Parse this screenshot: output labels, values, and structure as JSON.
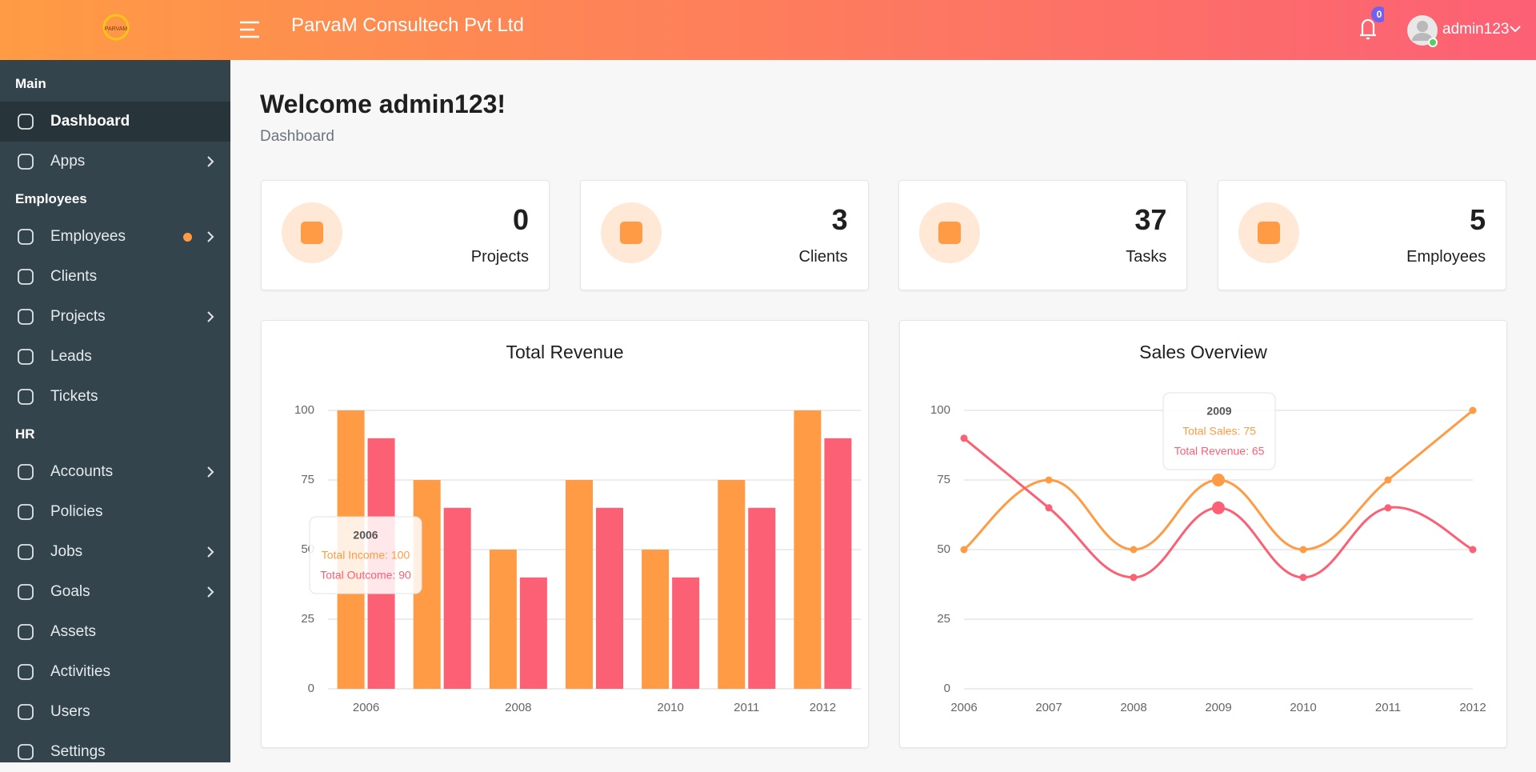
{
  "header": {
    "logo": "PARVAM",
    "company": "ParvaM Consultech Pvt Ltd",
    "notifications": "0",
    "user": "admin123"
  },
  "sidebar": {
    "sections": [
      {
        "title": "Main",
        "items": [
          {
            "label": "Dashboard",
            "active": true
          },
          {
            "label": "Apps",
            "submenu": true
          }
        ]
      },
      {
        "title": "Employees",
        "items": [
          {
            "label": "Employees",
            "submenu": true,
            "dot": true
          },
          {
            "label": "Clients"
          },
          {
            "label": "Projects",
            "submenu": true
          },
          {
            "label": "Leads"
          },
          {
            "label": "Tickets"
          }
        ]
      },
      {
        "title": "HR",
        "items": [
          {
            "label": "Accounts",
            "submenu": true
          },
          {
            "label": "Policies"
          },
          {
            "label": "Jobs",
            "submenu": true
          },
          {
            "label": "Goals",
            "submenu": true
          },
          {
            "label": "Assets"
          },
          {
            "label": "Activities"
          },
          {
            "label": "Users"
          },
          {
            "label": "Settings"
          }
        ]
      }
    ]
  },
  "page": {
    "title": "Welcome admin123!",
    "breadcrumb": "Dashboard"
  },
  "stats": [
    {
      "value": "0",
      "label": "Projects"
    },
    {
      "value": "3",
      "label": "Clients"
    },
    {
      "value": "37",
      "label": "Tasks"
    },
    {
      "value": "5",
      "label": "Employees"
    }
  ],
  "chart_data": [
    {
      "type": "bar",
      "title": "Total Revenue",
      "categories": [
        "2006",
        null,
        "2008",
        null,
        "2010",
        "2011",
        "2012"
      ],
      "series": [
        {
          "name": "Total Income",
          "color": "#ff9b44",
          "values": [
            100,
            75,
            50,
            75,
            50,
            75,
            100
          ]
        },
        {
          "name": "Total Outcome",
          "color": "#fc6075",
          "values": [
            90,
            65,
            40,
            65,
            40,
            65,
            90
          ]
        }
      ],
      "ylim": [
        0,
        100
      ],
      "yticks": [
        0,
        25,
        50,
        75,
        100
      ],
      "grid": true,
      "tooltip": {
        "title": "2006",
        "lines": [
          "Total Income: 100",
          "Total Outcome: 90"
        ]
      }
    },
    {
      "type": "line",
      "title": "Sales Overview",
      "categories": [
        "2006",
        "2007",
        "2008",
        "2009",
        "2010",
        "2011",
        "2012"
      ],
      "series": [
        {
          "name": "Total Sales",
          "color": "#ff9b44",
          "values": [
            50,
            75,
            50,
            75,
            50,
            75,
            100
          ]
        },
        {
          "name": "Total Revenue",
          "color": "#fc6075",
          "values": [
            90,
            65,
            40,
            65,
            40,
            65,
            50
          ]
        }
      ],
      "ylim": [
        0,
        100
      ],
      "yticks": [
        0,
        25,
        50,
        75,
        100
      ],
      "grid": true,
      "highlight": 3,
      "tooltip": {
        "title": "2009",
        "lines": [
          "Total Sales: 75",
          "Total Revenue: 65"
        ]
      }
    }
  ]
}
